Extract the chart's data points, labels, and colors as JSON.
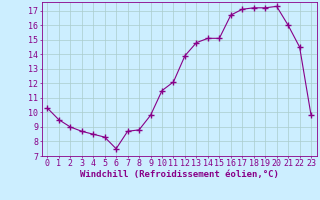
{
  "x": [
    0,
    1,
    2,
    3,
    4,
    5,
    6,
    7,
    8,
    9,
    10,
    11,
    12,
    13,
    14,
    15,
    16,
    17,
    18,
    19,
    20,
    21,
    22,
    23
  ],
  "y": [
    10.3,
    9.5,
    9.0,
    8.7,
    8.5,
    8.3,
    7.5,
    8.7,
    8.8,
    9.8,
    11.5,
    12.1,
    13.9,
    14.8,
    15.1,
    15.1,
    16.7,
    17.1,
    17.2,
    17.2,
    17.3,
    16.0,
    14.5,
    9.8
  ],
  "line_color": "#880088",
  "marker": "+",
  "marker_size": 4,
  "marker_lw": 1.0,
  "bg_color": "#cceeff",
  "grid_color": "#aacccc",
  "ylabel_ticks": [
    7,
    8,
    9,
    10,
    11,
    12,
    13,
    14,
    15,
    16,
    17
  ],
  "xlim": [
    -0.5,
    23.5
  ],
  "ylim": [
    7,
    17.6
  ],
  "xtick_labels": [
    "0",
    "1",
    "2",
    "3",
    "4",
    "5",
    "6",
    "7",
    "8",
    "9",
    "10",
    "11",
    "12",
    "13",
    "14",
    "15",
    "16",
    "17",
    "18",
    "19",
    "20",
    "21",
    "22",
    "23"
  ],
  "xlabel": "Windchill (Refroidissement éolien,°C)",
  "xlabel_fontsize": 6.5,
  "tick_fontsize": 6.0
}
